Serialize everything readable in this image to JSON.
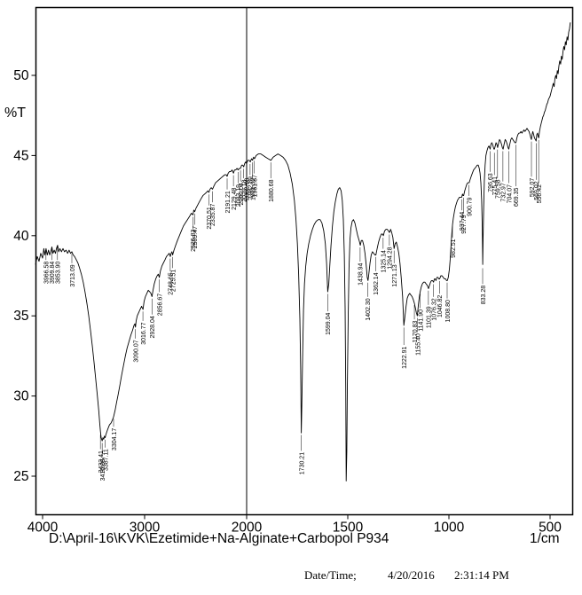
{
  "footer": {
    "datetime_label": "Date/Time;",
    "date": "4/20/2016",
    "time": "2:31:14 PM"
  },
  "chart_data": {
    "type": "line",
    "title": "D:\\April-16\\KVK\\Ezetimide+Na-Alginate+Carbopol P934",
    "ylabel": "%T",
    "x_unit": "1/cm",
    "x_ticks": [
      4000,
      3000,
      2000,
      1500,
      1000,
      500
    ],
    "y_ticks": [
      25,
      30,
      35,
      40,
      45,
      50
    ],
    "xlim": [
      4070,
      400
    ],
    "ylim": [
      22.6,
      54.2
    ],
    "axis_break": 2000,
    "x_scale_note": "wavenumber axis is compressed 2x above 2000 1/cm; vertical divider line drawn at 2000",
    "grid": false,
    "legend": "none",
    "points": [
      4070,
      38.2,
      4052,
      38.7,
      4035,
      38.4,
      4018,
      38.9,
      4000,
      38.6,
      3988,
      39.2,
      3978,
      38.8,
      3966,
      39.2,
      3954,
      38.8,
      3942,
      39.1,
      3930,
      38.8,
      3920,
      39.0,
      3909,
      39.3,
      3898,
      38.9,
      3886,
      39.1,
      3874,
      38.9,
      3864,
      39.2,
      3853,
      39.4,
      3842,
      39.0,
      3830,
      39.2,
      3815,
      39.0,
      3800,
      39.2,
      3785,
      39.0,
      3770,
      39.1,
      3755,
      38.9,
      3740,
      39.1,
      3726,
      38.9,
      3713,
      39.0,
      3700,
      38.8,
      3686,
      38.7,
      3670,
      38.5,
      3654,
      38.3,
      3638,
      38.0,
      3620,
      37.6,
      3602,
      37.1,
      3584,
      36.5,
      3566,
      35.8,
      3548,
      35.0,
      3530,
      34.1,
      3512,
      33.1,
      3496,
      32.1,
      3480,
      31.1,
      3464,
      30.1,
      3450,
      29.1,
      3440,
      28.3,
      3433,
      27.8,
      3426,
      27.4,
      3416,
      27.2,
      3409,
      27.4,
      3401,
      27.3,
      3394,
      27.5,
      3387,
      27.4,
      3379,
      27.6,
      3369,
      27.8,
      3357,
      28.0,
      3344,
      28.2,
      3330,
      28.3,
      3316,
      28.5,
      3304,
      28.7,
      3290,
      29.1,
      3275,
      29.6,
      3259,
      30.1,
      3242,
      30.7,
      3225,
      31.3,
      3207,
      31.9,
      3189,
      32.5,
      3171,
      33.0,
      3153,
      33.4,
      3135,
      33.8,
      3118,
      34.1,
      3104,
      34.4,
      3096,
      34.5,
      3090,
      34.3,
      3083,
      34.7,
      3072,
      35.0,
      3058,
      35.2,
      3044,
      35.4,
      3030,
      35.6,
      3016,
      35.4,
      3005,
      35.9,
      2992,
      36.2,
      2978,
      36.4,
      2964,
      36.6,
      2950,
      36.5,
      2938,
      36.4,
      2928,
      36.2,
      2917,
      36.6,
      2905,
      37.0,
      2891,
      37.3,
      2877,
      37.5,
      2866,
      37.6,
      2856,
      37.4,
      2845,
      37.8,
      2831,
      38.1,
      2816,
      38.3,
      2800,
      38.5,
      2786,
      38.7,
      2772,
      38.8,
      2759,
      38.9,
      2748,
      38.7,
      2740,
      38.9,
      2732,
      39.0,
      2725,
      38.8,
      2712,
      39.1,
      2696,
      39.4,
      2678,
      39.7,
      2659,
      40.0,
      2640,
      40.3,
      2620,
      40.6,
      2600,
      40.8,
      2580,
      41.0,
      2560,
      41.2,
      2542,
      41.4,
      2526,
      41.3,
      2518,
      41.6,
      2509,
      41.5,
      2497,
      41.7,
      2481,
      41.9,
      2464,
      42.1,
      2447,
      42.3,
      2429,
      42.5,
      2411,
      42.6,
      2394,
      42.7,
      2380,
      42.8,
      2370,
      42.7,
      2359,
      42.9,
      2347,
      43.0,
      2335,
      42.9,
      2321,
      43.1,
      2304,
      43.3,
      2287,
      43.4,
      2269,
      43.5,
      2251,
      43.6,
      2233,
      43.7,
      2215,
      43.8,
      2200,
      43.8,
      2191,
      43.7,
      2181,
      43.9,
      2169,
      44.0,
      2156,
      44.0,
      2143,
      44.1,
      2129,
      43.9,
      2119,
      44.1,
      2107,
      44.1,
      2095,
      44.2,
      2083,
      44.1,
      2073,
      44.2,
      2060,
      44.2,
      2049,
      44.4,
      2038,
      44.4,
      2029,
      44.3,
      2019,
      44.5,
      2010,
      44.6,
      2002,
      44.5,
      1994,
      44.7,
      1987,
      44.7,
      1982,
      44.6,
      1976,
      44.8,
      1971,
      44.7,
      1966,
      44.9,
      1961,
      44.8,
      1953,
      45.0,
      1942,
      45.1,
      1930,
      45.1,
      1918,
      45.0,
      1906,
      44.9,
      1894,
      44.8,
      1880,
      44.7,
      1869,
      44.9,
      1857,
      45.0,
      1845,
      45.1,
      1832,
      45.0,
      1820,
      44.9,
      1808,
      44.7,
      1796,
      44.4,
      1785,
      43.9,
      1774,
      43.2,
      1764,
      42.2,
      1756,
      41.0,
      1749,
      39.5,
      1743,
      37.6,
      1737,
      34.8,
      1733,
      31.6,
      1730,
      27.7,
      1727,
      29.4,
      1723,
      32.8,
      1719,
      35.4,
      1714,
      37.0,
      1708,
      38.1,
      1701,
      38.9,
      1693,
      39.5,
      1684,
      40.0,
      1675,
      40.4,
      1666,
      40.7,
      1656,
      40.9,
      1646,
      41.0,
      1637,
      41.0,
      1628,
      40.8,
      1619,
      40.3,
      1611,
      39.5,
      1605,
      38.3,
      1599,
      36.5,
      1594,
      37.0,
      1589,
      38.1,
      1583,
      39.4,
      1576,
      40.6,
      1569,
      41.5,
      1562,
      42.1,
      1554,
      42.6,
      1547,
      42.9,
      1540,
      43.0,
      1533,
      42.8,
      1527,
      42.2,
      1522,
      41.0,
      1517,
      38.8,
      1513,
      35.5,
      1510,
      30.5,
      1508,
      24.7,
      1505,
      26.5,
      1502,
      30.5,
      1498,
      35.0,
      1494,
      38.0,
      1489,
      39.8,
      1484,
      40.5,
      1478,
      40.9,
      1472,
      41.0,
      1465,
      40.8,
      1458,
      40.4,
      1451,
      40.0,
      1444,
      39.7,
      1438,
      39.4,
      1433,
      39.7,
      1427,
      39.7,
      1421,
      39.4,
      1415,
      38.9,
      1409,
      38.2,
      1404,
      37.4,
      1400,
      37.2,
      1396,
      37.6,
      1390,
      38.3,
      1384,
      38.8,
      1378,
      39.0,
      1372,
      38.9,
      1366,
      38.8,
      1361,
      38.8,
      1355,
      39.2,
      1348,
      39.6,
      1341,
      39.9,
      1334,
      40.1,
      1328,
      40.1,
      1324,
      40.0,
      1318,
      40.3,
      1311,
      40.4,
      1305,
      40.4,
      1299,
      40.3,
      1294,
      40.2,
      1288,
      40.4,
      1283,
      40.2,
      1277,
      39.9,
      1271,
      39.2,
      1266,
      39.5,
      1260,
      39.6,
      1254,
      39.3,
      1248,
      38.9,
      1242,
      38.3,
      1236,
      37.4,
      1229,
      36.2,
      1223,
      34.4,
      1218,
      34.9,
      1212,
      35.6,
      1206,
      36.1,
      1200,
      36.3,
      1194,
      36.4,
      1188,
      36.3,
      1182,
      36.2,
      1176,
      36.0,
      1171,
      35.8,
      1166,
      35.5,
      1161,
      35.2,
      1156,
      35.0,
      1151,
      35.7,
      1146,
      36.2,
      1142,
      36.5,
      1137,
      36.8,
      1131,
      37.0,
      1125,
      37.1,
      1119,
      37.1,
      1113,
      37.0,
      1107,
      36.9,
      1101,
      36.7,
      1096,
      36.9,
      1091,
      37.1,
      1086,
      37.2,
      1081,
      37.2,
      1076,
      37.1,
      1072,
      37.3,
      1068,
      37.3,
      1064,
      37.2,
      1059,
      37.4,
      1054,
      37.4,
      1050,
      37.3,
      1046,
      37.3,
      1040,
      37.5,
      1034,
      37.5,
      1028,
      37.4,
      1022,
      37.3,
      1016,
      37.3,
      1012,
      37.2,
      1008,
      37.2,
      1003,
      37.4,
      998,
      37.9,
      994,
      38.5,
      990,
      39.3,
      986,
      40.1,
      982,
      40.7,
      978,
      41.1,
      973,
      41.5,
      968,
      41.8,
      963,
      42.0,
      958,
      42.2,
      953,
      42.3,
      948,
      42.4,
      943,
      42.4,
      937,
      42.4,
      933,
      42.6,
      930,
      42.5,
      927,
      42.5,
      922,
      42.8,
      917,
      43.0,
      912,
      43.2,
      907,
      43.3,
      903,
      43.3,
      900,
      43.3,
      895,
      43.5,
      890,
      43.7,
      884,
      43.9,
      878,
      44.1,
      872,
      44.2,
      866,
      44.3,
      860,
      44.4,
      855,
      44.4,
      850,
      44.2,
      846,
      43.9,
      842,
      43.3,
      838,
      42.2,
      835,
      40.5,
      833,
      38.2,
      831,
      39.8,
      828,
      41.8,
      825,
      43.4,
      821,
      44.4,
      817,
      45.0,
      812,
      45.3,
      807,
      45.5,
      802,
      45.6,
      799,
      45.5,
      796,
      45.4,
      792,
      45.7,
      788,
      45.8,
      784,
      45.7,
      780,
      45.5,
      777,
      45.4,
      775,
      45.4,
      771,
      45.6,
      767,
      45.8,
      763,
      45.7,
      759,
      45.5,
      754,
      45.8,
      750,
      46.0,
      745,
      45.9,
      740,
      45.7,
      736,
      45.5,
      732,
      45.4,
      727,
      45.7,
      722,
      46.0,
      717,
      45.9,
      712,
      45.7,
      708,
      45.5,
      704,
      45.4,
      699,
      45.7,
      694,
      46.0,
      689,
      46.1,
      684,
      46.0,
      679,
      45.9,
      674,
      45.8,
      669,
      45.8,
      664,
      46.1,
      659,
      46.3,
      654,
      46.4,
      649,
      46.4,
      644,
      46.5,
      639,
      46.4,
      634,
      46.5,
      629,
      46.6,
      624,
      46.5,
      619,
      46.6,
      614,
      46.7,
      609,
      46.6,
      604,
      46.5,
      599,
      46.3,
      595,
      46.1,
      592,
      46.0,
      589,
      46.3,
      585,
      46.5,
      581,
      46.3,
      577,
      46.1,
      573,
      46.0,
      569,
      45.9,
      566,
      46.3,
      562,
      46.4,
      559,
      46.2,
      556,
      46.1,
      552,
      46.5,
      548,
      46.8,
      544,
      47.0,
      540,
      47.2,
      536,
      47.4,
      532,
      47.5,
      528,
      47.7,
      524,
      47.8,
      520,
      48.0,
      516,
      48.2,
      512,
      48.3,
      508,
      48.5,
      504,
      48.6,
      500,
      48.7,
      496,
      48.9,
      492,
      49.1,
      488,
      49.3,
      484,
      49.5,
      480,
      49.3,
      476,
      49.8,
      472,
      50.0,
      468,
      49.8,
      464,
      50.3,
      460,
      50.1,
      456,
      50.6,
      452,
      50.9,
      448,
      50.7,
      444,
      51.2,
      440,
      51.0,
      436,
      51.5,
      432,
      51.8,
      428,
      51.6,
      424,
      52.1,
      420,
      51.9,
      416,
      52.4,
      412,
      52.2,
      408,
      52.7,
      404,
      52.9,
      400,
      53.3
    ],
    "peaks": [
      [
        3966.58,
        38.4,
        39.2
      ],
      [
        3909.84,
        38.4,
        39.3
      ],
      [
        3853.9,
        38.4,
        39.4
      ],
      [
        3713.09,
        38.2,
        38.9
      ],
      [
        3433.41,
        26.6,
        27.6
      ],
      [
        3416.05,
        26.1,
        27.1
      ],
      [
        3387.11,
        26.7,
        27.3
      ],
      [
        3304.17,
        28.0,
        28.6
      ],
      [
        3090.07,
        33.5,
        34.2
      ],
      [
        3016.77,
        34.6,
        35.3
      ],
      [
        2928.04,
        35.0,
        36.1
      ],
      [
        2856.67,
        36.4,
        37.3
      ],
      [
        2748.65,
        37.7,
        38.6
      ],
      [
        2725.51,
        37.9,
        38.7
      ],
      [
        2526.83,
        40.4,
        41.2
      ],
      [
        2509.47,
        40.6,
        41.4
      ],
      [
        2370.51,
        41.8,
        42.6
      ],
      [
        2335.87,
        42.0,
        42.8
      ],
      [
        2191.21,
        42.8,
        43.6
      ],
      [
        2129.48,
        43.0,
        43.8
      ],
      [
        2083.19,
        43.2,
        44.0
      ],
      [
        2060.04,
        43.3,
        44.1
      ],
      [
        2029.18,
        43.5,
        44.2
      ],
      [
        2002.18,
        43.6,
        44.4
      ],
      [
        1982.89,
        43.7,
        44.5
      ],
      [
        1971.32,
        43.6,
        44.6
      ],
      [
        1961.87,
        43.8,
        44.7
      ],
      [
        1880.68,
        43.5,
        44.6
      ],
      [
        1730.21,
        26.5,
        27.6
      ],
      [
        1599.04,
        35.2,
        36.4
      ],
      [
        1438.94,
        38.3,
        39.3
      ],
      [
        1402.3,
        36.1,
        37.1
      ],
      [
        1362.14,
        37.7,
        38.7
      ],
      [
        1325.14,
        39.1,
        39.9
      ],
      [
        1294.28,
        39.3,
        40.1
      ],
      [
        1271.13,
        38.2,
        39.1
      ],
      [
        1222.91,
        33.1,
        34.3
      ],
      [
        1170.83,
        34.7,
        35.7
      ],
      [
        1155.4,
        33.9,
        34.9
      ],
      [
        1141.9,
        35.4,
        36.4
      ],
      [
        1101.39,
        35.6,
        36.6
      ],
      [
        1076.32,
        36.1,
        37.0
      ],
      [
        1046.82,
        36.3,
        37.2
      ],
      [
        1008.8,
        36.0,
        37.1
      ],
      [
        982.51,
        39.8,
        40.6
      ],
      [
        937.44,
        41.5,
        42.3
      ],
      [
        927.79,
        41.3,
        42.4
      ],
      [
        900.79,
        42.4,
        43.2
      ],
      [
        833.28,
        36.9,
        38.0
      ],
      [
        796.63,
        43.9,
        45.3
      ],
      [
        775.41,
        43.7,
        45.2
      ],
      [
        759.58,
        43.5,
        45.4
      ],
      [
        732.97,
        43.3,
        45.3
      ],
      [
        704.07,
        43.2,
        45.3
      ],
      [
        669.35,
        43.0,
        45.7
      ],
      [
        592.07,
        43.6,
        45.9
      ],
      [
        569.02,
        43.4,
        45.8
      ],
      [
        556.42,
        43.2,
        46.0
      ]
    ]
  }
}
